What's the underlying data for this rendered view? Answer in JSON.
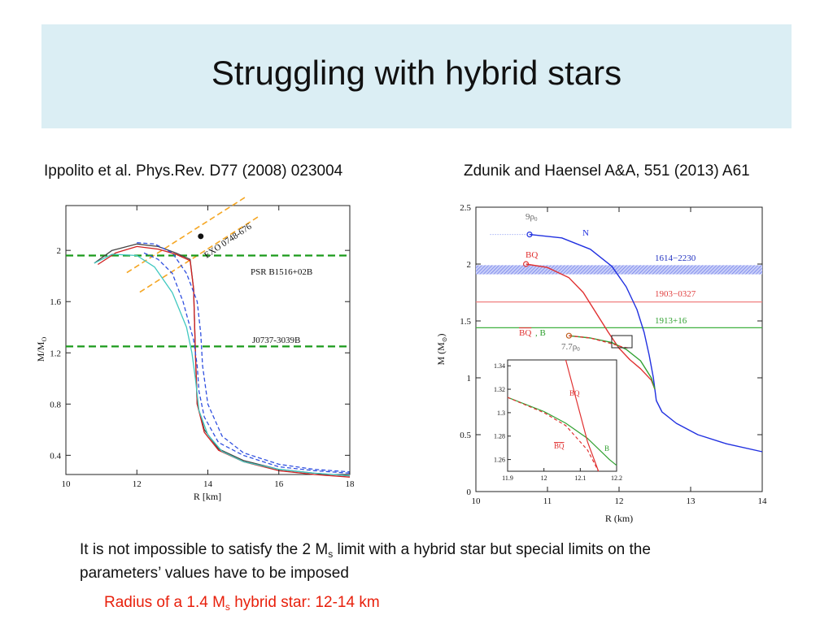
{
  "slide": {
    "title": "Struggling with hybrid stars",
    "left_caption": "Ippolito et al. Phys.Rev. D77 (2008) 023004",
    "right_caption": "Zdunik and Haensel A&A, 551 (2013) A61",
    "body_part1": "It is not impossible to satisfy the 2 M",
    "body_sub": "s",
    "body_part2": " limit with a hybrid star but special limits on the parameters’ values have to be imposed",
    "red_part1": "Radius of a 1.4 M",
    "red_sub": "s",
    "red_part2": " hybrid star: 12-14 km"
  },
  "chart_data": [
    {
      "type": "line",
      "xlabel": "R [km]",
      "ylabel": "M/M",
      "ylabel_sub": "O",
      "xlim": [
        10,
        18
      ],
      "ylim": [
        0.25,
        2.35
      ],
      "xticks": [
        10,
        12,
        14,
        16,
        18
      ],
      "yticks": [
        0.4,
        0.8,
        1.2,
        1.6,
        2
      ],
      "ytick_labels": [
        "0.4",
        "0.8",
        "1.2",
        "1.6",
        "2"
      ],
      "annotations": {
        "psr": "PSR B1516+02B",
        "j0737": "J0737-3039B",
        "exo": "EXO 0748-676"
      },
      "hlines": [
        {
          "y": 1.96,
          "color": "#1a9a1a",
          "style": "dashed",
          "label": "PSR B1516+02B"
        },
        {
          "y": 1.25,
          "color": "#1a9a1a",
          "style": "dashed",
          "label": "J0737-3039B"
        }
      ],
      "exo_band": {
        "x": [
          11.9,
          15.3
        ],
        "y": [
          1.75,
          2.35
        ],
        "color": "#f5a623"
      },
      "exo_point": {
        "x": 13.8,
        "y": 2.11
      },
      "series": [
        {
          "color": "#444444",
          "x": [
            10.8,
            11.3,
            12.0,
            12.6,
            13.1,
            13.5,
            13.6,
            13.65,
            13.7,
            13.9,
            14.3,
            15.0,
            16.0,
            17.0,
            18.0
          ],
          "y": [
            1.9,
            2.0,
            2.05,
            2.03,
            1.98,
            1.93,
            1.7,
            1.2,
            0.8,
            0.6,
            0.45,
            0.36,
            0.29,
            0.26,
            0.24
          ]
        },
        {
          "color": "#d02020",
          "x": [
            10.9,
            11.4,
            12.0,
            12.6,
            13.1,
            13.5,
            13.6,
            13.65,
            13.7,
            13.9,
            14.3,
            15.0,
            16.0,
            17.0,
            18.0
          ],
          "y": [
            1.89,
            1.98,
            2.03,
            2.01,
            1.97,
            1.92,
            1.7,
            1.2,
            0.8,
            0.58,
            0.44,
            0.35,
            0.28,
            0.25,
            0.23
          ]
        },
        {
          "color": "#40c8c0",
          "x": [
            10.8,
            11.3,
            12.0,
            12.5,
            13.0,
            13.4,
            13.55,
            13.65,
            13.75,
            14.0,
            14.4,
            15.0,
            16.0,
            17.0,
            18.0
          ],
          "y": [
            1.9,
            1.97,
            1.96,
            1.87,
            1.67,
            1.4,
            1.2,
            1.0,
            0.75,
            0.56,
            0.43,
            0.35,
            0.29,
            0.26,
            0.24
          ]
        },
        {
          "color": "#3050e0",
          "style": "dashed",
          "x": [
            12.0,
            12.5,
            13.0,
            13.4,
            13.7,
            13.8,
            13.85,
            14.0,
            14.4,
            15.0,
            16.0,
            17.0,
            18.0
          ],
          "y": [
            2.06,
            2.05,
            1.98,
            1.82,
            1.6,
            1.35,
            1.1,
            0.8,
            0.55,
            0.42,
            0.33,
            0.29,
            0.27
          ]
        },
        {
          "color": "#3050e0",
          "style": "dashed",
          "x": [
            12.2,
            12.6,
            13.0,
            13.3,
            13.6,
            13.7,
            13.75,
            13.9,
            14.3,
            15.0,
            16.0,
            17.0,
            18.0
          ],
          "y": [
            1.98,
            1.93,
            1.82,
            1.6,
            1.3,
            1.1,
            0.9,
            0.7,
            0.5,
            0.4,
            0.31,
            0.28,
            0.26
          ]
        }
      ]
    },
    {
      "type": "line",
      "xlabel": "R (km)",
      "ylabel": "M (M",
      "ylabel_sub": "⊙",
      "ylabel_end": ")",
      "xlim": [
        10,
        14
      ],
      "ylim": [
        0,
        2.5
      ],
      "xticks": [
        10,
        11,
        12,
        13,
        14
      ],
      "yticks": [
        0,
        0.5,
        1,
        1.5,
        2,
        2.5
      ],
      "ytick_labels": [
        "0",
        "0.5",
        "1",
        "1.5",
        "2",
        "2.5"
      ],
      "bands": [
        {
          "label": "1614−2230",
          "y": [
            1.91,
            1.99
          ],
          "color": "#8090f0",
          "hatched": true
        },
        {
          "label": "1903−0327",
          "y": [
            1.667,
            1.667
          ],
          "color": "#f08080"
        },
        {
          "label": "1913+16",
          "y": [
            1.44,
            1.44
          ],
          "color": "#40b040"
        }
      ],
      "curve_labels": {
        "n": "N",
        "bq": "BQ",
        "bq_bar": "BQ",
        "b": "B",
        "rho9": "9ρ",
        "rho9_sub": "0",
        "rho77": "7.7ρ",
        "rho77_sub": "0"
      },
      "series": [
        {
          "name": "N",
          "color": "#2030e0",
          "x": [
            10.75,
            11.2,
            11.6,
            11.9,
            12.1,
            12.25,
            12.35,
            12.42,
            12.48,
            12.5,
            12.52,
            12.6,
            12.8,
            13.1,
            13.5,
            14.0
          ],
          "y": [
            2.26,
            2.23,
            2.13,
            1.98,
            1.8,
            1.6,
            1.4,
            1.2,
            1.0,
            0.9,
            0.8,
            0.7,
            0.6,
            0.5,
            0.42,
            0.35
          ]
        },
        {
          "name": "BQ",
          "color": "#e03030",
          "x": [
            10.7,
            11.0,
            11.3,
            11.5,
            11.7,
            11.85,
            12.0,
            12.15,
            12.3,
            12.45,
            12.5
          ],
          "y": [
            2.0,
            1.97,
            1.88,
            1.75,
            1.55,
            1.4,
            1.26,
            1.16,
            1.08,
            0.98,
            0.9
          ]
        },
        {
          "name": "B",
          "color": "#30a030",
          "x": [
            11.3,
            11.6,
            11.9,
            12.1,
            12.3,
            12.45,
            12.5
          ],
          "y": [
            1.37,
            1.35,
            1.31,
            1.25,
            1.15,
            1.0,
            0.9
          ]
        },
        {
          "name": "BQbar",
          "color": "#e03030",
          "style": "dashed",
          "x": [
            11.3,
            11.6,
            11.9,
            12.05,
            12.15
          ],
          "y": [
            1.37,
            1.35,
            1.3,
            1.27,
            1.26
          ]
        }
      ],
      "inset": {
        "xlim": [
          11.9,
          12.2
        ],
        "ylim": [
          1.25,
          1.345
        ],
        "xticks": [
          11.9,
          12,
          12.1,
          12.2
        ],
        "yticks": [
          1.26,
          1.28,
          1.3,
          1.32,
          1.34
        ],
        "ytick_labels": [
          "1.26",
          "1.28",
          "1.3",
          "1.32",
          "1.34"
        ],
        "series": [
          {
            "name": "B",
            "color": "#30a030",
            "x": [
              11.9,
              12.0,
              12.06,
              12.12,
              12.18,
              12.2
            ],
            "y": [
              1.313,
              1.301,
              1.291,
              1.278,
              1.26,
              1.255
            ]
          },
          {
            "name": "BQ",
            "color": "#e03030",
            "x": [
              12.06,
              12.09,
              12.12,
              12.15
            ],
            "y": [
              1.345,
              1.31,
              1.275,
              1.25
            ]
          },
          {
            "name": "BQbar",
            "color": "#e03030",
            "style": "dashed",
            "x": [
              11.9,
              12.0,
              12.06,
              12.12,
              12.15
            ],
            "y": [
              1.313,
              1.3,
              1.289,
              1.268,
              1.25
            ]
          }
        ]
      }
    }
  ]
}
